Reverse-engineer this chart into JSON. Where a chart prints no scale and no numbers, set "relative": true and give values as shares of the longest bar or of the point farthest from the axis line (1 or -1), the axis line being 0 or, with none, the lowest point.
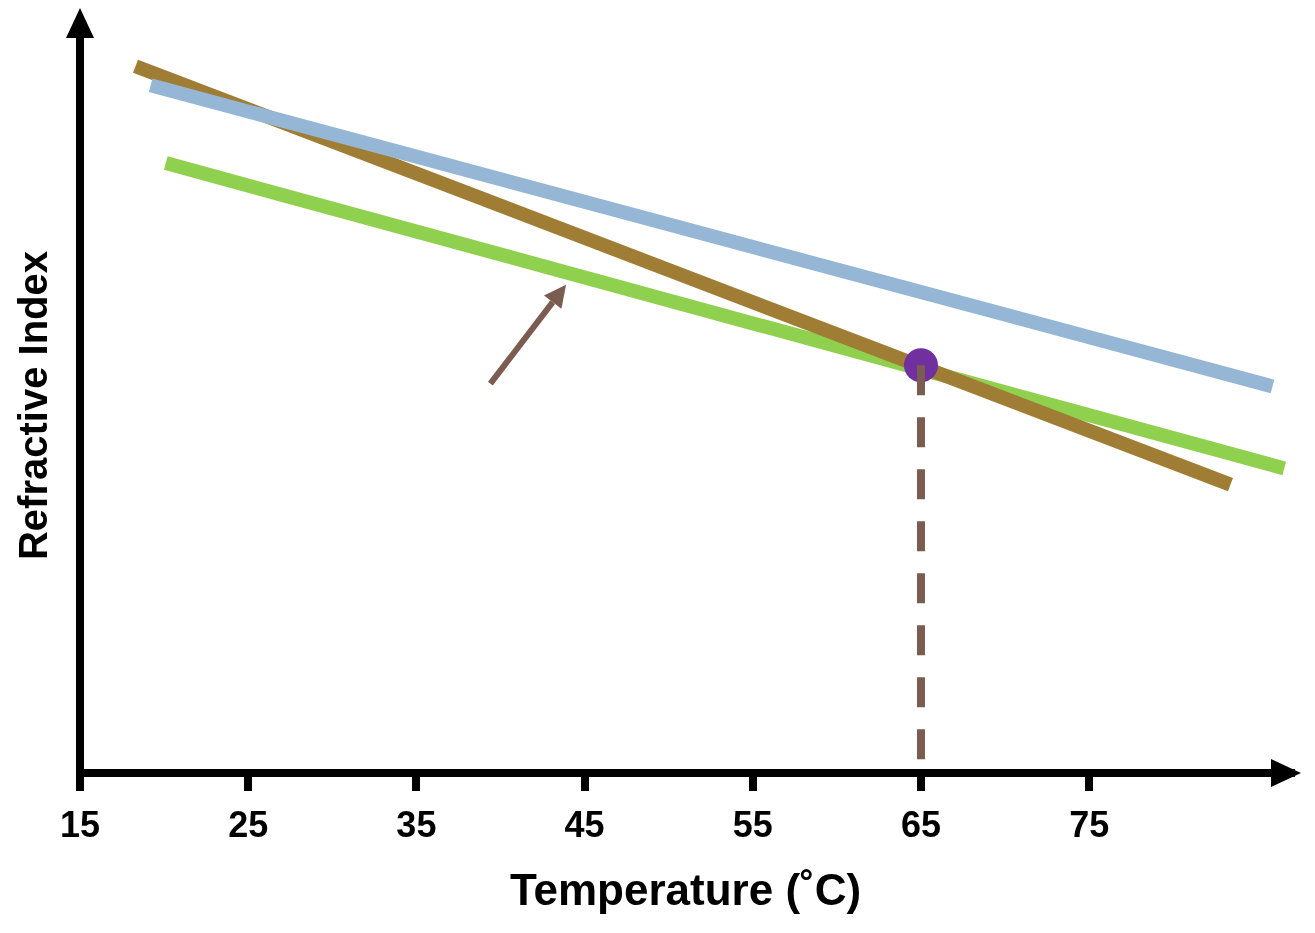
{
  "chart_data": {
    "type": "line",
    "xlabel": "Temperature (˚C)",
    "ylabel": "Refractive Index",
    "relative": true,
    "xlim": [
      15,
      87
    ],
    "xticks": [
      15,
      25,
      35,
      45,
      55,
      65,
      75
    ],
    "grid": false,
    "legend": false,
    "marker": "none",
    "series": [
      {
        "color": "#95b6d4",
        "x": [
          19.2,
          85.9
        ],
        "values": [
          0.973,
          0.547
        ]
      },
      {
        "color": "#a07d35",
        "x": [
          18.3,
          83.4
        ],
        "values": [
          1.0,
          0.408
        ]
      },
      {
        "color": "#8fd14f",
        "x": [
          20.1,
          86.6
        ],
        "values": [
          0.863,
          0.431
        ]
      },
      {
        "type": "line",
        "line_style": "dashed",
        "color": "#7a5c50",
        "x": [
          65,
          65
        ],
        "values": [
          0.577,
          0
        ]
      },
      {
        "type": "scatter",
        "marker": "circle",
        "color": "#7030a0",
        "x": [
          65
        ],
        "values": [
          0.577
        ]
      }
    ]
  }
}
